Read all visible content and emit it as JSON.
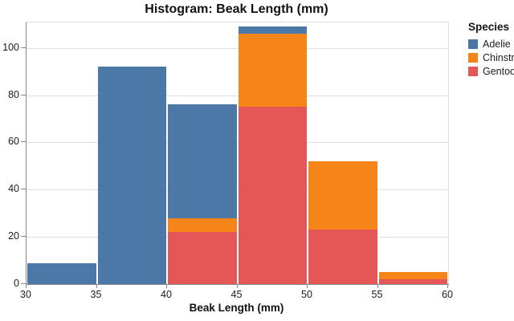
{
  "title": "Histogram: Beak Length (mm)",
  "chart_data": {
    "type": "bar",
    "subtype": "stacked-histogram",
    "title": "Histogram: Beak Length (mm)",
    "xlabel": "Beak Length (mm)",
    "ylabel": "",
    "bin_edges": [
      30,
      35,
      40,
      45,
      50,
      55,
      60
    ],
    "x_ticks": [
      30,
      35,
      40,
      45,
      50,
      55,
      60
    ],
    "y_ticks": [
      0,
      20,
      40,
      60,
      80,
      100
    ],
    "xlim": [
      30,
      60
    ],
    "ylim": [
      0,
      110.8
    ],
    "grid": true,
    "legend_position": "right",
    "series": [
      {
        "name": "Adelie",
        "color": "#4C78A8",
        "values": [
          9,
          92,
          48,
          3,
          0,
          0
        ]
      },
      {
        "name": "Chinstrap",
        "color": "#F58518",
        "values": [
          0,
          0,
          6,
          31,
          29,
          3
        ]
      },
      {
        "name": "Gentoo",
        "color": "#E45756",
        "values": [
          0,
          0,
          22,
          75,
          23,
          2
        ]
      }
    ],
    "stack_bottom_to_top": [
      "Gentoo",
      "Chinstrap",
      "Adelie"
    ],
    "bin_totals": [
      9,
      92,
      76,
      109,
      52,
      5
    ]
  },
  "legend": {
    "title": "Species",
    "items": [
      {
        "label": "Adelie",
        "color": "#4C78A8"
      },
      {
        "label": "Chinstrap",
        "color": "#F58518"
      },
      {
        "label": "Gentoo",
        "color": "#E45756"
      }
    ]
  },
  "style_colors": {
    "grid": "#dddddd",
    "plot_border": "#dddddd",
    "axis_domain": "#888888",
    "tick": "#888888",
    "label_text": "#1c1c1c",
    "title_text": "#121212"
  }
}
